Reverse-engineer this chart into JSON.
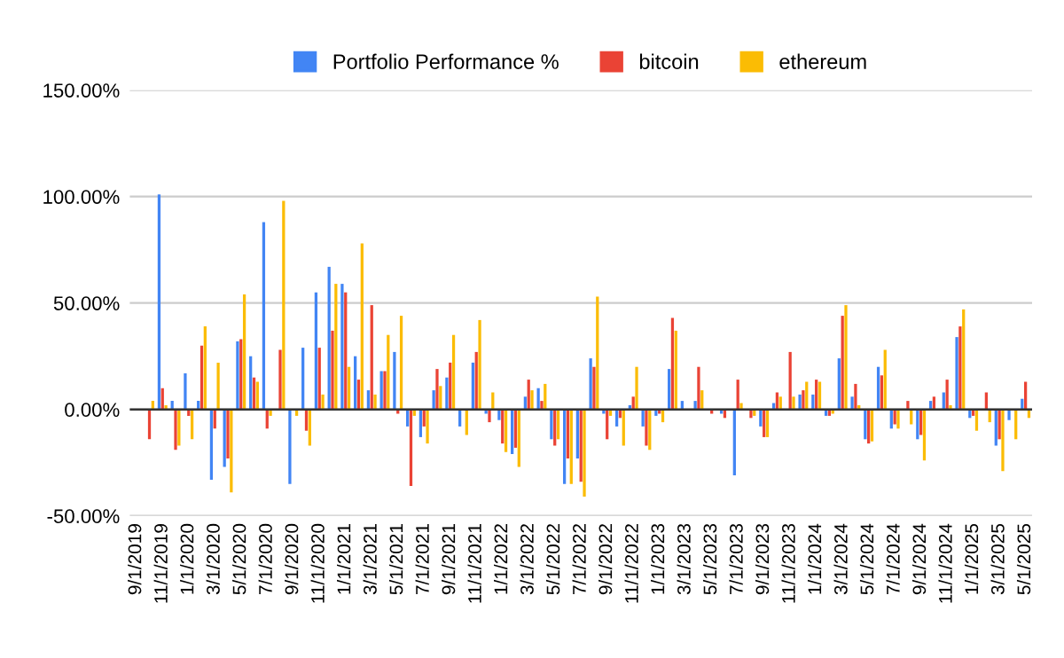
{
  "chart_data": {
    "type": "bar",
    "categories": [
      "9/1/2019",
      null,
      "11/1/2019",
      null,
      "1/1/2020",
      null,
      "3/1/2020",
      null,
      "5/1/2020",
      null,
      "7/1/2020",
      null,
      "9/1/2020",
      null,
      "11/1/2020",
      null,
      "1/1/2021",
      null,
      "3/1/2021",
      null,
      "5/1/2021",
      null,
      "7/1/2021",
      null,
      "9/1/2021",
      null,
      "11/1/2021",
      null,
      "1/1/2022",
      null,
      "3/1/2022",
      null,
      "5/1/2022",
      null,
      "7/1/2022",
      null,
      "9/1/2022",
      null,
      "11/1/2022",
      null,
      "1/1/2023",
      null,
      "3/1/2023",
      null,
      "5/1/2023",
      null,
      "7/1/2023",
      null,
      "9/1/2023",
      null,
      "11/1/2023",
      null,
      "1/1/2024",
      null,
      "3/1/2024",
      null,
      "5/1/2024",
      null,
      "7/1/2024",
      null,
      "9/1/2024",
      null,
      "11/1/2024",
      null,
      "1/1/2025",
      null,
      "3/1/2025",
      null,
      "5/1/2025"
    ],
    "series": [
      {
        "name": "Portfolio Performance %",
        "color": "#4285f4",
        "values": [
          null,
          null,
          101,
          4,
          17,
          4,
          -33,
          -27,
          32,
          25,
          88,
          null,
          -35,
          29,
          55,
          67,
          59,
          25,
          9,
          18,
          27,
          -8,
          -13,
          9,
          15,
          -8,
          22,
          -2,
          -5,
          -21,
          6,
          10,
          -14,
          -35,
          -23,
          24,
          -2,
          -8,
          2,
          -8,
          -3,
          19,
          4,
          4,
          0,
          -2,
          -31,
          0,
          -8,
          3,
          0,
          7,
          7,
          -3,
          24,
          6,
          -14,
          20,
          -9,
          0,
          -14,
          4,
          8,
          34,
          -4,
          0,
          -17,
          -5,
          5
        ]
      },
      {
        "name": "bitcoin",
        "color": "#ea4335",
        "values": [
          null,
          -14,
          10,
          -19,
          -3,
          30,
          -9,
          -23,
          33,
          15,
          -9,
          28,
          null,
          -10,
          29,
          37,
          55,
          14,
          49,
          18,
          -2,
          -36,
          -8,
          19,
          22,
          0,
          27,
          -6,
          -16,
          -18,
          14,
          4,
          -17,
          -23,
          -34,
          20,
          -14,
          -4,
          6,
          -17,
          -2,
          43,
          0,
          20,
          -2,
          -4,
          14,
          -4,
          -13,
          8,
          27,
          9,
          14,
          -3,
          44,
          12,
          -16,
          16,
          -7,
          4,
          -12,
          6,
          14,
          39,
          -3,
          8,
          -14,
          0,
          13
        ]
      },
      {
        "name": "ethereum",
        "color": "#fbbc04",
        "values": [
          null,
          4,
          2,
          -17,
          -14,
          39,
          22,
          -39,
          54,
          13,
          -3,
          98,
          -3,
          -17,
          7,
          59,
          20,
          78,
          7,
          35,
          44,
          -3,
          -16,
          11,
          35,
          -12,
          42,
          8,
          -20,
          -27,
          9,
          12,
          -14,
          -35,
          -41,
          53,
          -3,
          -17,
          20,
          -19,
          -6,
          37,
          null,
          9,
          0,
          null,
          3,
          -3,
          -13,
          6,
          6,
          13,
          13,
          -2,
          49,
          2,
          -15,
          28,
          -9,
          -7,
          -24,
          null,
          2,
          47,
          -10,
          -6,
          -29,
          -14,
          -4
        ]
      }
    ],
    "ylim": [
      -50,
      150
    ],
    "yticks": [
      {
        "value": -50,
        "label": "-50.00%"
      },
      {
        "value": 0,
        "label": "0.00%"
      },
      {
        "value": 50,
        "label": "50.00%"
      },
      {
        "value": 100,
        "label": "100.00%"
      },
      {
        "value": 150,
        "label": "150.00%"
      }
    ],
    "grid": "y",
    "legend": "top"
  }
}
